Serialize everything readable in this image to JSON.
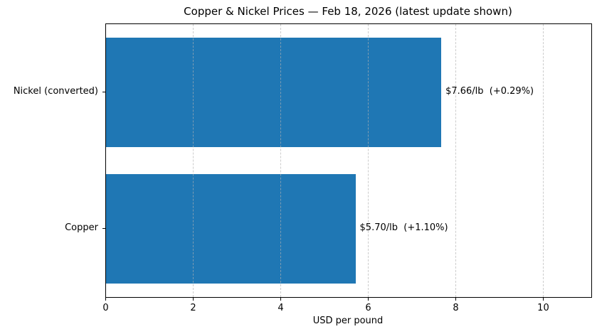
{
  "chart_data": {
    "type": "bar",
    "orientation": "horizontal",
    "title": "Copper & Nickel Prices — Feb 18, 2026 (latest update shown)",
    "categories": [
      "Nickel (converted)",
      "Copper"
    ],
    "values": [
      7.66,
      5.7
    ],
    "value_labels": [
      "$7.66/lb  (+0.29%)",
      "$5.70/lb  (+1.10%)"
    ],
    "xlabel": "USD per pound",
    "xticks": [
      0,
      2,
      4,
      6,
      8,
      10
    ],
    "xtick_labels": [
      "0",
      "2",
      "4",
      "6",
      "8",
      "10"
    ],
    "xlim": [
      0,
      11.09
    ],
    "bar_color": "#1f77b4",
    "bar_height_frac": 0.8,
    "grid": {
      "axis": "x",
      "style": "dashed",
      "color": "#b0b0b0",
      "drawn_above_bars": true
    },
    "legend": null,
    "background_color": "#ffffff",
    "text_color": "#000000"
  }
}
